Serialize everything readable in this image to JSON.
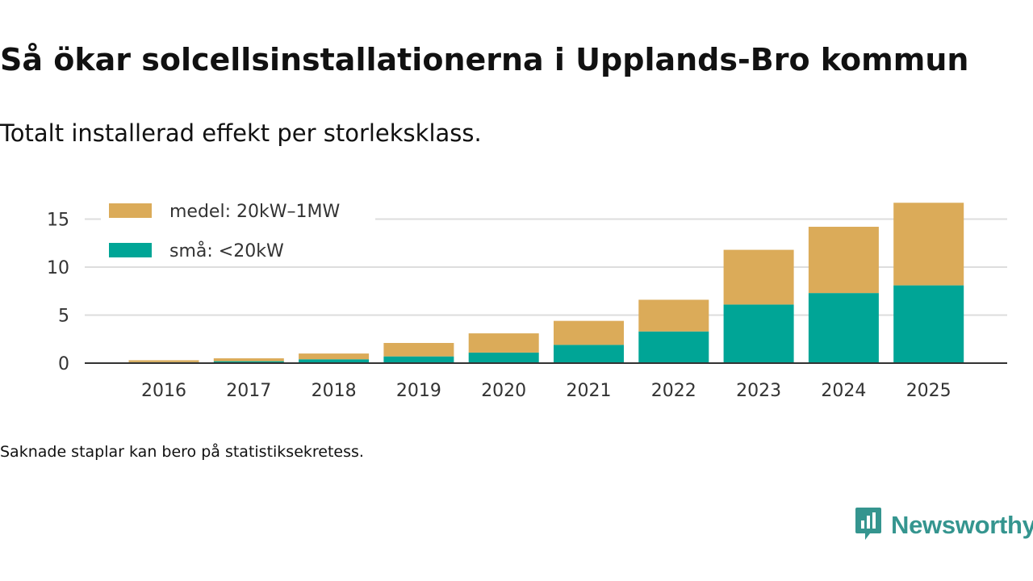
{
  "title": "Så ökar solcellsinstallationerna i Upplands-Bro kommun",
  "subtitle": "Totalt installerad effekt per storleksklass.",
  "footnote": "Saknade staplar kan bero på statistiksekretess.",
  "brand": {
    "name": "Newsworthy",
    "icon": "newsworthy-logo-icon",
    "color": "#35958f"
  },
  "colors": {
    "grid": "#dddddd",
    "axis": "#333333",
    "text": "#333333"
  },
  "chart_data": {
    "type": "bar",
    "stacked": true,
    "title": "Så ökar solcellsinstallationerna i Upplands-Bro kommun",
    "subtitle": "Totalt installerad effekt per storleksklass.",
    "xlabel": "",
    "ylabel": "",
    "ylim": [
      0,
      17
    ],
    "yticks": [
      0,
      5,
      10,
      15
    ],
    "grid": true,
    "legend_position": "top-left",
    "categories": [
      "2016",
      "2017",
      "2018",
      "2019",
      "2020",
      "2021",
      "2022",
      "2023",
      "2024",
      "2025"
    ],
    "series": [
      {
        "name": "små: <20kW",
        "color": "#00a596",
        "values": [
          0.1,
          0.2,
          0.4,
          0.7,
          1.1,
          1.9,
          3.3,
          6.1,
          7.3,
          8.1
        ]
      },
      {
        "name": "medel: 20kW–1MW",
        "color": "#dbab59",
        "values": [
          0.2,
          0.3,
          0.6,
          1.4,
          2.0,
          2.5,
          3.3,
          5.7,
          6.9,
          8.6
        ]
      }
    ]
  }
}
